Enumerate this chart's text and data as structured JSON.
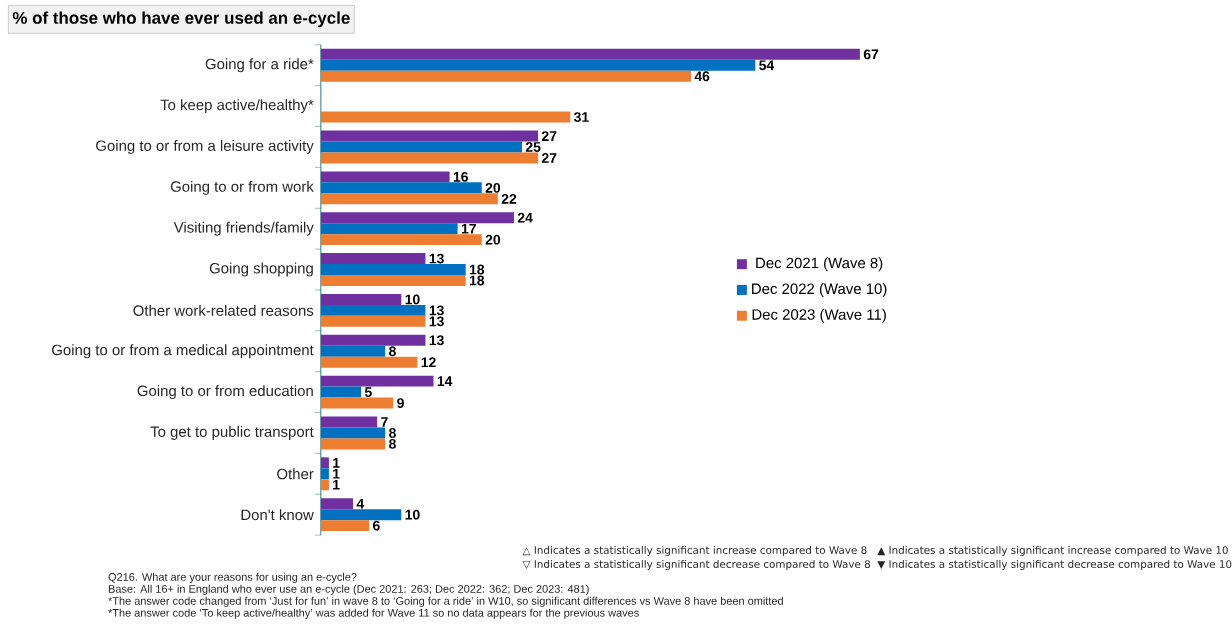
{
  "chart_data": {
    "type": "bar",
    "orientation": "horizontal",
    "title": "% of those who have ever used an e-cycle",
    "categories": [
      "Going for a ride*",
      "To keep active/healthy*",
      "Going to or from a leisure activity",
      "Going to or from work",
      "Visiting friends/family",
      "Going shopping",
      "Other work-related reasons",
      "Going to or from a medical appointment",
      "Going to or from education",
      "To get to public transport",
      "Other",
      "Don't know"
    ],
    "series": [
      {
        "name": "Dec 2021 (Wave 8)",
        "color": "#7030a0",
        "values": [
          67,
          null,
          27,
          16,
          24,
          13,
          10,
          13,
          14,
          7,
          1,
          4
        ]
      },
      {
        "name": "Dec 2022 (Wave 10)",
        "color": "#0070c0",
        "values": [
          54,
          null,
          25,
          20,
          17,
          18,
          13,
          8,
          5,
          8,
          1,
          10
        ]
      },
      {
        "name": "Dec 2023 (Wave 11)",
        "color": "#ed7d31",
        "values": [
          46,
          31,
          27,
          22,
          20,
          18,
          13,
          12,
          9,
          8,
          1,
          6
        ]
      }
    ],
    "data_labels": true,
    "legend": "right",
    "tick_labels": "y",
    "annotations": [
      "△ Indicates a statistically significant increase compared to Wave 8",
      "▽ Indicates a statistically significant decrease compared to Wave 8",
      "▲ Indicates a statistically significant increase compared to Wave 10",
      "▼ Indicates a statistically significant decrease compared to Wave 10",
      "Q216. What are your reasons for using an e-cycle?",
      "Base: All 16+ in England who ever use an e-cycle (Dec 2021: 263; Dec 2022: 362; Dec 2023: 481)",
      "*The answer code changed from ‘Just for fun’ in wave 8 to ‘Going for a ride’ in W10, so significant differences vs Wave 8 have been omitted",
      "*The answer code ‘To keep active/healthy’ was added for Wave 11 so no data appears for the previous waves"
    ]
  }
}
